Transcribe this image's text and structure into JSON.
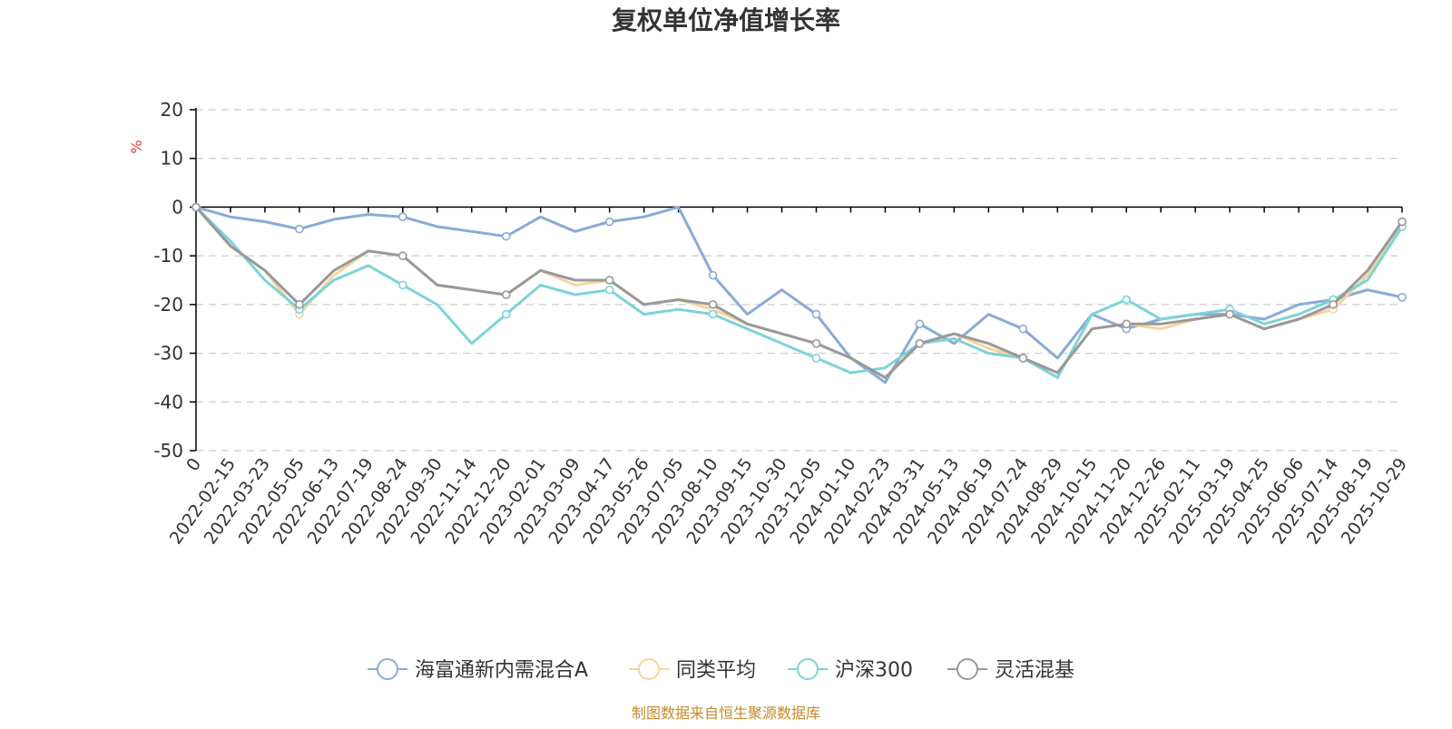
{
  "chart_data": {
    "type": "line",
    "title": "复权单位净值增长率",
    "ylabel": "%",
    "ylim": [
      -50,
      20
    ],
    "yticks": [
      20,
      10,
      0,
      -10,
      -20,
      -30,
      -40,
      -50
    ],
    "grid": true,
    "legend_position": "bottom-center",
    "source": "制图数据来自恒生聚源数据库",
    "categories": [
      "0",
      "2022-02-15",
      "2022-03-23",
      "2022-05-05",
      "2022-06-13",
      "2022-07-19",
      "2022-08-24",
      "2022-09-30",
      "2022-11-14",
      "2022-12-20",
      "2023-02-01",
      "2023-03-09",
      "2023-04-17",
      "2023-05-26",
      "2023-07-05",
      "2023-08-10",
      "2023-09-15",
      "2023-10-30",
      "2023-12-05",
      "2024-01-10",
      "2024-02-23",
      "2024-03-31",
      "2024-05-13",
      "2024-06-19",
      "2024-07-24",
      "2024-08-29",
      "2024-10-15",
      "2024-11-20",
      "2024-12-26",
      "2025-02-11",
      "2025-03-19",
      "2025-04-25",
      "2025-06-06",
      "2025-07-14",
      "2025-08-19",
      "2025-10-29"
    ],
    "series": [
      {
        "name": "海富通新内需混合A",
        "color": "#8aaad8",
        "values": [
          0,
          -2,
          -3,
          -4.5,
          -2.5,
          -1.5,
          -2,
          -4,
          -5,
          -6,
          -2,
          -5,
          -3,
          -2,
          0,
          -14,
          -22,
          -17,
          -22,
          -31,
          -36,
          -24,
          -28,
          -22,
          -25,
          -31,
          -22,
          -25,
          -23,
          -22,
          -22,
          -23,
          -20,
          -19,
          -17,
          -18.5
        ]
      },
      {
        "name": "同类平均",
        "color": "#f6d49b",
        "values": [
          0,
          -8,
          -13,
          -22,
          -14,
          -9,
          -10,
          -16,
          -17,
          -18,
          -13,
          -16,
          -15,
          -20,
          -19,
          -21,
          -24,
          -26,
          -28,
          -31,
          -35,
          -28,
          -26,
          -29,
          -31,
          -34,
          -25,
          -24,
          -25,
          -23,
          -22,
          -25,
          -23,
          -21,
          -14,
          -3
        ]
      },
      {
        "name": "沪深300",
        "color": "#7dd3d8",
        "values": [
          0,
          -7,
          -15,
          -21,
          -15,
          -12,
          -16,
          -20,
          -28,
          -22,
          -16,
          -18,
          -17,
          -22,
          -21,
          -22,
          -25,
          -28,
          -31,
          -34,
          -33,
          -28,
          -27,
          -30,
          -31,
          -35,
          -22,
          -19,
          -23,
          -22,
          -21,
          -24,
          -22,
          -19,
          -15,
          -4
        ]
      },
      {
        "name": "灵活混基",
        "color": "#999999",
        "values": [
          0,
          -8,
          -13,
          -20,
          -13,
          -9,
          -10,
          -16,
          -17,
          -18,
          -13,
          -15,
          -15,
          -20,
          -19,
          -20,
          -24,
          -26,
          -28,
          -31,
          -35,
          -28,
          -26,
          -28,
          -31,
          -34,
          -25,
          -24,
          -24,
          -23,
          -22,
          -25,
          -23,
          -20,
          -13,
          -3
        ]
      }
    ]
  }
}
